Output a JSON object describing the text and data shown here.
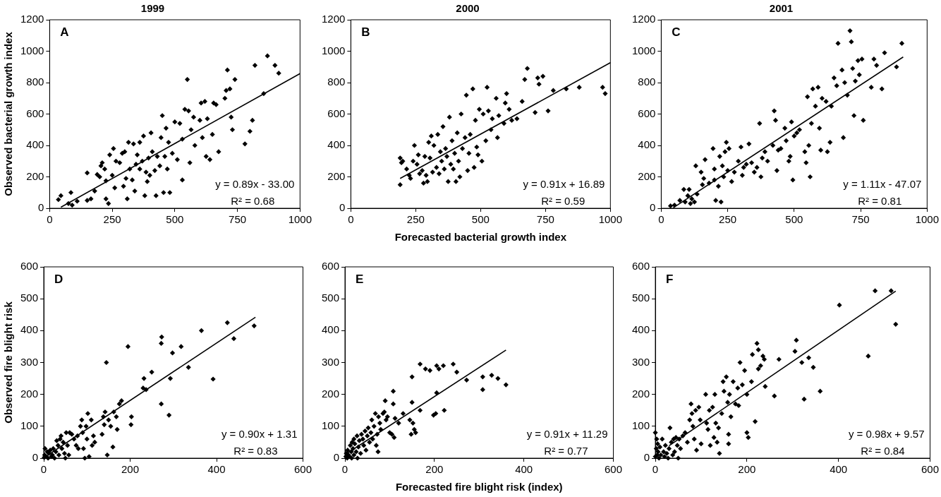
{
  "chart_data": [
    {
      "type": "scatter",
      "title": "1999",
      "ylabel": "Observed bacterial growth index",
      "xlim": [
        0,
        1000
      ],
      "xticks": [
        0,
        250,
        500,
        750,
        1000
      ],
      "ylim": [
        0,
        1200
      ],
      "yticks": [
        0,
        200,
        400,
        600,
        800,
        1000,
        1200
      ],
      "grid": false,
      "marker": "diamond",
      "annotations": [
        "A",
        "y = 0.89x - 33.00",
        "R² = 0.68"
      ],
      "series": [
        {
          "color": "#000000",
          "x": [
            35,
            45,
            75,
            85,
            90,
            110,
            150,
            165,
            180,
            150,
            190,
            200,
            205,
            210,
            220,
            225,
            225,
            235,
            240,
            250,
            255,
            260,
            265,
            280,
            290,
            295,
            300,
            305,
            310,
            315,
            320,
            330,
            335,
            340,
            345,
            350,
            360,
            360,
            370,
            375,
            380,
            385,
            390,
            395,
            400,
            405,
            410,
            420,
            425,
            430,
            440,
            445,
            450,
            455,
            460,
            465,
            470,
            475,
            480,
            490,
            500,
            510,
            520,
            530,
            530,
            540,
            550,
            555,
            560,
            565,
            575,
            580,
            600,
            605,
            610,
            620,
            625,
            630,
            640,
            650,
            655,
            665,
            675,
            700,
            705,
            710,
            720,
            725,
            730,
            740,
            780,
            800,
            810,
            820,
            855,
            870,
            900,
            915
          ],
          "values": [
            55,
            80,
            30,
            100,
            20,
            45,
            50,
            60,
            110,
            225,
            215,
            200,
            270,
            290,
            250,
            175,
            60,
            30,
            340,
            210,
            380,
            130,
            300,
            290,
            350,
            140,
            360,
            190,
            60,
            420,
            250,
            180,
            410,
            110,
            280,
            340,
            250,
            420,
            300,
            460,
            80,
            230,
            170,
            320,
            210,
            480,
            360,
            240,
            80,
            330,
            270,
            450,
            590,
            100,
            330,
            510,
            250,
            420,
            100,
            350,
            550,
            310,
            540,
            440,
            180,
            630,
            820,
            620,
            290,
            500,
            580,
            400,
            560,
            670,
            450,
            680,
            330,
            570,
            310,
            470,
            670,
            660,
            360,
            700,
            750,
            880,
            760,
            580,
            500,
            820,
            410,
            490,
            560,
            910,
            730,
            970,
            910,
            860
          ]
        },
        {
          "type": "line",
          "marker": "none",
          "line_style": "solid",
          "color": "#000000",
          "x": [
            45,
            1000
          ],
          "values": [
            7,
            857
          ]
        }
      ]
    },
    {
      "type": "scatter",
      "title": "2000",
      "xlabel": "Forecasted bacterial growth index",
      "xlim": [
        0,
        1000
      ],
      "xticks": [
        0,
        250,
        500,
        750,
        1000
      ],
      "ylim": [
        0,
        1200
      ],
      "yticks": [
        0,
        200,
        400,
        600,
        800,
        1000,
        1200
      ],
      "grid": false,
      "marker": "diamond",
      "annotations": [
        "B",
        "y = 0.91x + 16.89",
        "R² = 0.59"
      ],
      "series": [
        {
          "color": "#000000",
          "x": [
            190,
            190,
            195,
            200,
            215,
            225,
            230,
            240,
            245,
            255,
            260,
            265,
            275,
            280,
            285,
            290,
            295,
            300,
            305,
            310,
            315,
            320,
            330,
            335,
            340,
            345,
            350,
            355,
            360,
            365,
            370,
            375,
            380,
            385,
            390,
            395,
            400,
            405,
            410,
            415,
            420,
            425,
            430,
            440,
            445,
            450,
            455,
            460,
            470,
            475,
            480,
            485,
            490,
            495,
            505,
            510,
            520,
            525,
            530,
            540,
            545,
            560,
            565,
            570,
            590,
            595,
            600,
            610,
            620,
            640,
            660,
            670,
            680,
            710,
            720,
            725,
            740,
            760,
            780,
            830,
            880,
            970,
            980
          ],
          "values": [
            150,
            320,
            290,
            300,
            250,
            210,
            190,
            300,
            400,
            280,
            340,
            220,
            240,
            160,
            330,
            210,
            170,
            420,
            320,
            460,
            230,
            400,
            260,
            470,
            220,
            360,
            300,
            520,
            250,
            380,
            330,
            170,
            580,
            280,
            430,
            250,
            350,
            170,
            480,
            300,
            200,
            600,
            380,
            450,
            720,
            240,
            350,
            470,
            760,
            260,
            560,
            390,
            340,
            630,
            300,
            600,
            430,
            770,
            620,
            500,
            570,
            700,
            450,
            590,
            540,
            670,
            730,
            630,
            560,
            570,
            680,
            820,
            890,
            610,
            830,
            790,
            840,
            620,
            750,
            760,
            770,
            770,
            730
          ]
        },
        {
          "type": "line",
          "marker": "none",
          "line_style": "solid",
          "color": "#000000",
          "x": [
            190,
            1000
          ],
          "values": [
            190,
            927
          ]
        }
      ]
    },
    {
      "type": "scatter",
      "title": "2001",
      "xlim": [
        0,
        1000
      ],
      "xticks": [
        0,
        250,
        500,
        750,
        1000
      ],
      "ylim": [
        0,
        1200
      ],
      "yticks": [
        0,
        200,
        400,
        600,
        800,
        1000,
        1200
      ],
      "grid": false,
      "marker": "diamond",
      "annotations": [
        "C",
        "y = 1.11x - 47.07",
        "R² = 0.81"
      ],
      "series": [
        {
          "color": "#000000",
          "x": [
            35,
            50,
            70,
            85,
            90,
            100,
            105,
            110,
            115,
            125,
            130,
            135,
            150,
            155,
            160,
            165,
            180,
            195,
            200,
            200,
            205,
            215,
            220,
            225,
            230,
            235,
            240,
            245,
            250,
            255,
            265,
            275,
            290,
            300,
            305,
            310,
            320,
            330,
            340,
            350,
            360,
            370,
            375,
            380,
            390,
            400,
            420,
            425,
            430,
            435,
            440,
            450,
            465,
            470,
            480,
            485,
            490,
            495,
            500,
            510,
            520,
            540,
            545,
            550,
            555,
            560,
            565,
            570,
            580,
            590,
            595,
            600,
            605,
            620,
            625,
            635,
            640,
            650,
            660,
            665,
            680,
            685,
            690,
            700,
            710,
            715,
            720,
            725,
            730,
            740,
            745,
            755,
            760,
            790,
            800,
            810,
            830,
            840,
            885,
            905
          ],
          "values": [
            15,
            20,
            50,
            120,
            40,
            80,
            120,
            30,
            60,
            40,
            270,
            90,
            230,
            150,
            190,
            310,
            160,
            380,
            180,
            250,
            50,
            140,
            330,
            40,
            270,
            200,
            360,
            420,
            240,
            380,
            170,
            230,
            300,
            390,
            210,
            260,
            280,
            410,
            290,
            230,
            260,
            540,
            200,
            320,
            360,
            300,
            400,
            620,
            560,
            240,
            370,
            380,
            510,
            430,
            300,
            330,
            550,
            180,
            460,
            480,
            500,
            360,
            290,
            710,
            400,
            200,
            540,
            760,
            650,
            770,
            510,
            370,
            700,
            680,
            360,
            420,
            650,
            830,
            780,
            1050,
            880,
            450,
            800,
            720,
            1130,
            1060,
            890,
            590,
            810,
            940,
            850,
            950,
            560,
            770,
            950,
            910,
            760,
            990,
            900,
            1050
          ]
        },
        {
          "type": "line",
          "marker": "none",
          "line_style": "solid",
          "color": "#000000",
          "x": [
            45,
            910
          ],
          "values": [
            3,
            963
          ]
        }
      ]
    },
    {
      "type": "scatter",
      "ylabel": "Observed fire blight risk",
      "xlim": [
        0,
        600
      ],
      "xticks": [
        0,
        200,
        400,
        600
      ],
      "ylim": [
        0,
        600
      ],
      "yticks": [
        0,
        100,
        200,
        300,
        400,
        500,
        600
      ],
      "grid": false,
      "marker": "diamond",
      "annotations": [
        "D",
        "y = 0.90x + 1.31",
        "R² = 0.83"
      ],
      "series": [
        {
          "color": "#000000",
          "x": [
            1,
            2,
            3,
            5,
            8,
            10,
            12,
            15,
            18,
            20,
            22,
            25,
            28,
            30,
            33,
            35,
            38,
            40,
            42,
            45,
            48,
            50,
            52,
            55,
            58,
            60,
            65,
            70,
            75,
            78,
            80,
            85,
            88,
            90,
            92,
            95,
            98,
            100,
            102,
            105,
            110,
            112,
            115,
            118,
            135,
            138,
            140,
            142,
            145,
            147,
            150,
            155,
            160,
            162,
            168,
            170,
            175,
            180,
            195,
            202,
            203,
            230,
            232,
            237,
            250,
            272,
            272,
            273,
            290,
            293,
            298,
            318,
            335,
            365,
            392,
            425,
            440,
            487
          ],
          "values": [
            2,
            10,
            30,
            5,
            20,
            0,
            15,
            25,
            5,
            10,
            30,
            0,
            20,
            55,
            40,
            10,
            60,
            70,
            30,
            50,
            15,
            0,
            80,
            40,
            10,
            80,
            75,
            60,
            40,
            70,
            30,
            100,
            120,
            80,
            30,
            0,
            100,
            60,
            140,
            5,
            120,
            40,
            70,
            50,
            75,
            130,
            105,
            145,
            300,
            10,
            120,
            100,
            35,
            145,
            130,
            90,
            170,
            180,
            350,
            105,
            130,
            220,
            250,
            215,
            270,
            170,
            360,
            380,
            135,
            250,
            330,
            350,
            285,
            400,
            248,
            425,
            375,
            415
          ]
        },
        {
          "type": "line",
          "marker": "none",
          "line_style": "solid",
          "color": "#000000",
          "x": [
            0,
            490
          ],
          "values": [
            1,
            442
          ]
        }
      ]
    },
    {
      "type": "scatter",
      "xlabel": "Forecasted fire blight risk (index)",
      "xlim": [
        0,
        600
      ],
      "xticks": [
        0,
        200,
        400,
        600
      ],
      "ylim": [
        0,
        600
      ],
      "yticks": [
        0,
        100,
        200,
        300,
        400,
        500,
        600
      ],
      "grid": false,
      "marker": "diamond",
      "annotations": [
        "E",
        "y = 0.91x + 11.29",
        "R² = 0.77"
      ],
      "series": [
        {
          "color": "#000000",
          "x": [
            2,
            3,
            5,
            6,
            8,
            10,
            12,
            14,
            15,
            16,
            18,
            20,
            20,
            22,
            25,
            27,
            28,
            30,
            32,
            35,
            37,
            40,
            42,
            45,
            47,
            50,
            52,
            55,
            58,
            60,
            62,
            65,
            68,
            70,
            72,
            74,
            75,
            78,
            80,
            85,
            88,
            90,
            92,
            95,
            100,
            105,
            108,
            108,
            110,
            112,
            120,
            130,
            145,
            148,
            150,
            150,
            152,
            155,
            158,
            168,
            168,
            180,
            190,
            198,
            203,
            205,
            205,
            210,
            220,
            222,
            242,
            250,
            272,
            308,
            308,
            328,
            342,
            360
          ],
          "values": [
            5,
            15,
            0,
            25,
            10,
            5,
            40,
            20,
            0,
            50,
            30,
            10,
            60,
            45,
            20,
            70,
            0,
            35,
            55,
            15,
            75,
            60,
            40,
            85,
            25,
            70,
            95,
            50,
            80,
            120,
            60,
            100,
            140,
            40,
            75,
            20,
            130,
            110,
            90,
            140,
            145,
            180,
            120,
            130,
            80,
            75,
            170,
            210,
            65,
            125,
            110,
            140,
            120,
            75,
            175,
            255,
            110,
            90,
            80,
            150,
            295,
            280,
            275,
            135,
            140,
            205,
            290,
            280,
            290,
            150,
            295,
            270,
            245,
            215,
            255,
            260,
            250,
            230
          ]
        },
        {
          "type": "line",
          "marker": "none",
          "line_style": "solid",
          "color": "#000000",
          "x": [
            0,
            360
          ],
          "values": [
            11,
            339
          ]
        }
      ]
    },
    {
      "type": "scatter",
      "xlim": [
        0,
        600
      ],
      "xticks": [
        0,
        200,
        400,
        600
      ],
      "ylim": [
        0,
        600
      ],
      "yticks": [
        0,
        100,
        200,
        300,
        400,
        500,
        600
      ],
      "grid": false,
      "marker": "diamond",
      "annotations": [
        "F",
        "y = 0.98x + 9.57",
        "R² = 0.84"
      ],
      "series": [
        {
          "color": "#000000",
          "x": [
            0,
            0,
            2,
            3,
            4,
            5,
            6,
            8,
            10,
            12,
            15,
            18,
            20,
            22,
            25,
            28,
            30,
            32,
            35,
            38,
            40,
            42,
            45,
            48,
            50,
            52,
            55,
            60,
            65,
            70,
            75,
            78,
            80,
            82,
            85,
            88,
            90,
            95,
            98,
            100,
            110,
            112,
            115,
            118,
            120,
            125,
            128,
            130,
            132,
            135,
            138,
            140,
            145,
            148,
            150,
            155,
            158,
            160,
            160,
            162,
            165,
            170,
            175,
            180,
            182,
            185,
            190,
            195,
            200,
            200,
            203,
            210,
            212,
            218,
            222,
            225,
            225,
            230,
            235,
            238,
            240,
            260,
            270,
            305,
            308,
            320,
            325,
            335,
            345,
            360,
            402,
            465,
            480,
            515,
            525
          ],
          "values": [
            5,
            80,
            30,
            60,
            10,
            45,
            20,
            0,
            35,
            10,
            60,
            20,
            5,
            40,
            15,
            0,
            30,
            95,
            50,
            10,
            60,
            20,
            65,
            40,
            0,
            60,
            30,
            70,
            80,
            50,
            120,
            170,
            140,
            100,
            60,
            150,
            25,
            160,
            120,
            45,
            200,
            110,
            90,
            150,
            40,
            160,
            65,
            200,
            110,
            50,
            95,
            15,
            140,
            240,
            210,
            255,
            175,
            75,
            45,
            200,
            130,
            240,
            170,
            220,
            165,
            300,
            230,
            275,
            80,
            200,
            65,
            240,
            325,
            115,
            360,
            280,
            340,
            290,
            320,
            310,
            225,
            195,
            310,
            335,
            370,
            300,
            185,
            315,
            285,
            210,
            480,
            320,
            525,
            525,
            420
          ]
        },
        {
          "type": "line",
          "marker": "none",
          "line_style": "solid",
          "color": "#000000",
          "x": [
            30,
            525
          ],
          "values": [
            39,
            524
          ]
        }
      ]
    }
  ]
}
